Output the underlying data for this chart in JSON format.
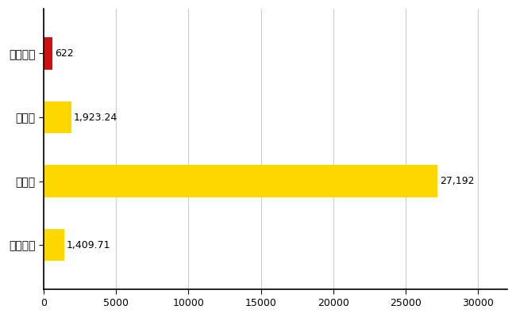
{
  "categories": [
    "全国平均",
    "県最大",
    "県平均",
    "那珂川町"
  ],
  "values": [
    1409.71,
    27192,
    1923.24,
    622
  ],
  "colors": [
    "#FFD700",
    "#FFD700",
    "#FFD700",
    "#CC1111"
  ],
  "labels": [
    "1,409.71",
    "27,192",
    "1,923.24",
    "622"
  ],
  "xlim": [
    0,
    32000
  ],
  "xticks": [
    0,
    5000,
    10000,
    15000,
    20000,
    25000,
    30000
  ],
  "xtick_labels": [
    "0",
    "5000",
    "10000",
    "15000",
    "20000",
    "25000",
    "30000"
  ],
  "bar_height": 0.5,
  "grid_color": "#cccccc",
  "background_color": "#ffffff",
  "label_fontsize": 9,
  "tick_fontsize": 9,
  "ytick_fontsize": 10
}
